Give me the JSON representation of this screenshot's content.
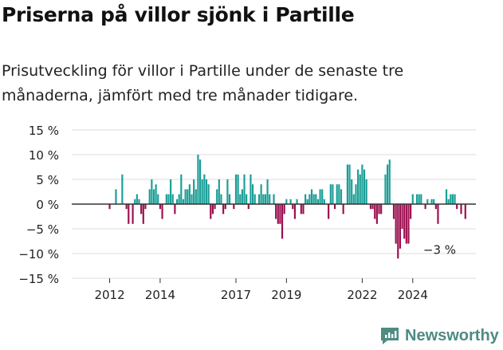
{
  "header": {
    "title": "Priserna på villor sjönk i Partille",
    "subtitle": "Prisutveckling för villor i Partille under de senaste tre månaderna, jämfört med tre månader tidigare."
  },
  "brand": {
    "name": "Newsworthy"
  },
  "colors": {
    "positive": "#1a9e96",
    "negative": "#9b0f4f",
    "axis": "#333333",
    "grid": "#dddddd"
  },
  "chart_data": {
    "type": "bar",
    "title": "Priserna på villor sjönk i Partille",
    "subtitle": "Prisutveckling för villor i Partille under de senaste tre månaderna, jämfört med tre månader tidigare.",
    "xlabel": "",
    "ylabel": "",
    "ylim": [
      -15,
      15
    ],
    "yticks": [
      15,
      10,
      5,
      0,
      -5,
      -10,
      -15
    ],
    "ytick_labels": [
      "15 %",
      "10 %",
      "5 %",
      "0 %",
      "−5 %",
      "−10 %",
      "−15 %"
    ],
    "x_start": 2011.0,
    "x_step": 0.08333,
    "xlim": [
      2010.5,
      2026.5
    ],
    "xticks": [
      2012,
      2014,
      2017,
      2019,
      2022,
      2024
    ],
    "xtick_labels": [
      "2012",
      "2014",
      "2017",
      "2019",
      "2022",
      "2024"
    ],
    "annotation": {
      "text": "−3 %",
      "x": 2025.0,
      "y": -3
    },
    "values": [
      0,
      0,
      0,
      0,
      0,
      0,
      0,
      0,
      0,
      0,
      0,
      0,
      -1,
      0,
      0,
      3,
      0,
      0,
      6,
      0,
      -1,
      -4,
      0,
      -4,
      1,
      2,
      1,
      -2,
      -4,
      -1,
      0,
      3,
      5,
      3,
      4,
      2,
      -1,
      -3,
      0,
      2,
      2,
      5,
      2,
      -2,
      1,
      2,
      6,
      1,
      3,
      3,
      4,
      2,
      5,
      3,
      10,
      9,
      5,
      6,
      5,
      4,
      -3,
      -2,
      -1,
      3,
      5,
      2,
      -2,
      -1,
      5,
      2,
      0,
      -1,
      6,
      6,
      2,
      3,
      6,
      2,
      -1,
      6,
      4,
      2,
      0,
      2,
      4,
      2,
      2,
      5,
      2,
      0,
      2,
      -3,
      -4,
      -4,
      -7,
      -2,
      1,
      0,
      1,
      -1,
      -3,
      1,
      0,
      -2,
      -2,
      2,
      1,
      2,
      3,
      2,
      2,
      1,
      3,
      3,
      1,
      0,
      -3,
      4,
      4,
      -1,
      4,
      4,
      3,
      -2,
      0,
      8,
      8,
      5,
      2,
      4,
      7,
      6,
      8,
      7,
      5,
      0,
      -1,
      -1,
      -3,
      -4,
      -2,
      -2,
      0,
      6,
      8,
      9,
      0,
      -3,
      -8,
      -11,
      -9,
      -5,
      -7,
      -8,
      -8,
      -3,
      2,
      0,
      2,
      2,
      2,
      0,
      -1,
      1,
      0,
      1,
      1,
      -1,
      -4,
      0,
      0,
      0,
      3,
      1,
      2,
      2,
      2,
      -1,
      0,
      -2,
      0,
      -3
    ]
  }
}
